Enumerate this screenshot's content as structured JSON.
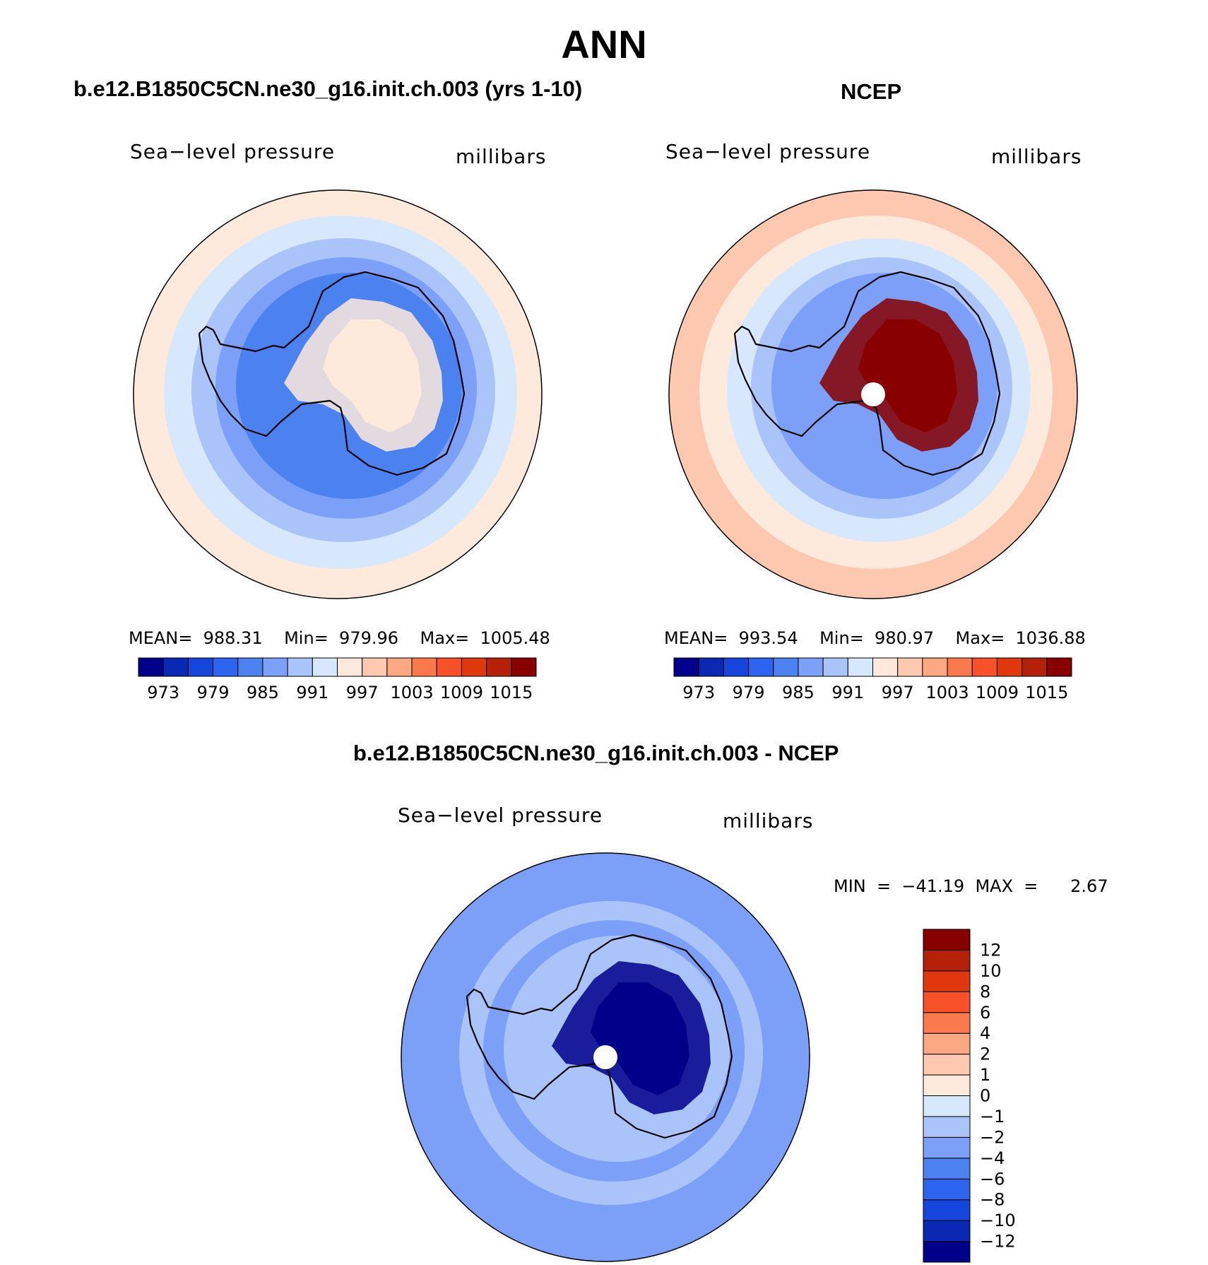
{
  "title": "ANN",
  "colors": {
    "abs_scale": [
      "#00008b",
      "#0a28b4",
      "#1446dc",
      "#2c64f0",
      "#4c82f0",
      "#7ca0f8",
      "#aac4fa",
      "#d8e8fc",
      "#fdeadc",
      "#fcc8b0",
      "#fca882",
      "#fa7a4e",
      "#f85028",
      "#e0380e",
      "#b42008",
      "#880000"
    ],
    "diff_scale": [
      "#00008b",
      "#0a28b4",
      "#1446dc",
      "#2c64f0",
      "#4c82f0",
      "#7ca0f8",
      "#aac4fa",
      "#d8e8fc",
      "#fdeadc",
      "#fcc8b0",
      "#fca882",
      "#fa7a4e",
      "#f85028",
      "#e0380e",
      "#b42008",
      "#880000"
    ],
    "coast": "#000000"
  },
  "chart_data": [
    {
      "id": "model",
      "type": "heatmap",
      "panel_title": "b.e12.B1850C5CN.ne30_g16.init.ch.003 (yrs 1-10)",
      "left_label": "Sea−level pressure",
      "right_label": "millibars",
      "projection": "south-polar-stereographic",
      "stats": "MEAN=  988.31    Min=  979.96    Max=  1005.48",
      "colorbar_levels": [
        973,
        976,
        979,
        982,
        985,
        988,
        991,
        994,
        997,
        1000,
        1003,
        1006,
        1009,
        1012,
        1015
      ],
      "colorbar_ticks": [
        "973",
        "979",
        "985",
        "991",
        "997",
        "1003",
        "1009",
        "1015"
      ],
      "rings_color_index": [
        8,
        7,
        6,
        5,
        4
      ],
      "center_color_index": 8,
      "mean": 988.31,
      "min": 979.96,
      "max": 1005.48
    },
    {
      "id": "obs",
      "type": "heatmap",
      "panel_title": "NCEP",
      "left_label": "Sea−level pressure",
      "right_label": "millibars",
      "projection": "south-polar-stereographic",
      "stats": "MEAN=  993.54    Min=  980.97    Max=  1036.88",
      "colorbar_levels": [
        973,
        976,
        979,
        982,
        985,
        988,
        991,
        994,
        997,
        1000,
        1003,
        1006,
        1009,
        1012,
        1015
      ],
      "colorbar_ticks": [
        "973",
        "979",
        "985",
        "991",
        "997",
        "1003",
        "1009",
        "1015"
      ],
      "rings_color_index": [
        9,
        8,
        7,
        6,
        5
      ],
      "center_color_index": 15,
      "mean": 993.54,
      "min": 980.97,
      "max": 1036.88
    },
    {
      "id": "diff",
      "type": "heatmap",
      "panel_title": "b.e12.B1850C5CN.ne30_g16.init.ch.003 - NCEP",
      "left_label": "Sea−level pressure",
      "right_label": "millibars",
      "projection": "south-polar-stereographic",
      "stats": "MIN  =  −41.19  MAX  =      2.67",
      "colorbar_levels": [
        -12,
        -10,
        -8,
        -6,
        -4,
        -2,
        -1,
        0,
        1,
        2,
        4,
        6,
        8,
        10,
        12
      ],
      "colorbar_ticks": [
        "−12",
        "−10",
        "−8",
        "−6",
        "−4",
        "−2",
        "−1",
        "0",
        "1",
        "2",
        "4",
        "6",
        "8",
        "10",
        "12"
      ],
      "rings_color_index": [
        5,
        5,
        6,
        5,
        6
      ],
      "center_color_index": 0,
      "min": -41.19,
      "max": 2.67
    }
  ]
}
